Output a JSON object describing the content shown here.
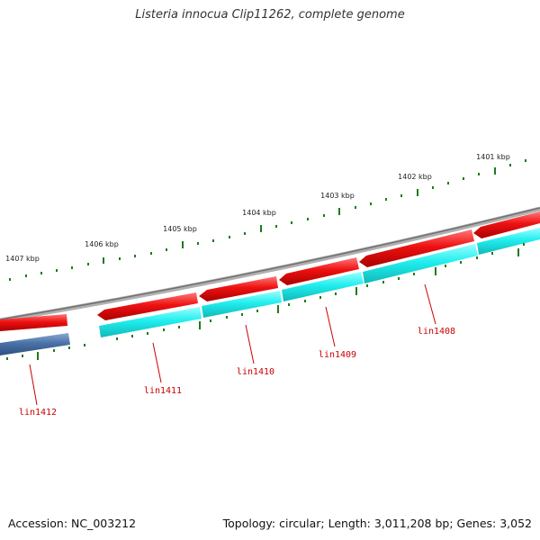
{
  "title": "Listeria innocua Clip11262, complete genome",
  "footer": {
    "accession": "Accession: NC_003212",
    "summary": "Topology: circular; Length: 3,011,208 bp; Genes: 3,052"
  },
  "colors": {
    "backbone": "#8a8a8a",
    "forward_gene": "#ee1111",
    "reverse_gene": "#22eeee",
    "reverse_gene_other": "#4a72a8",
    "tick": "#1f7a1f",
    "label": "#cc0000"
  },
  "scale_labels": [
    "1401 kbp",
    "1402 kbp",
    "1403 kbp",
    "1404 kbp",
    "1405 kbp",
    "1406 kbp",
    "1407 kbp"
  ],
  "genes": [
    {
      "label": "lin1408",
      "strand": "reverse"
    },
    {
      "label": "lin1409",
      "strand": "reverse"
    },
    {
      "label": "lin1410",
      "strand": "reverse"
    },
    {
      "label": "lin1411",
      "strand": "reverse"
    },
    {
      "label": "lin1412",
      "strand": "reverse"
    }
  ]
}
